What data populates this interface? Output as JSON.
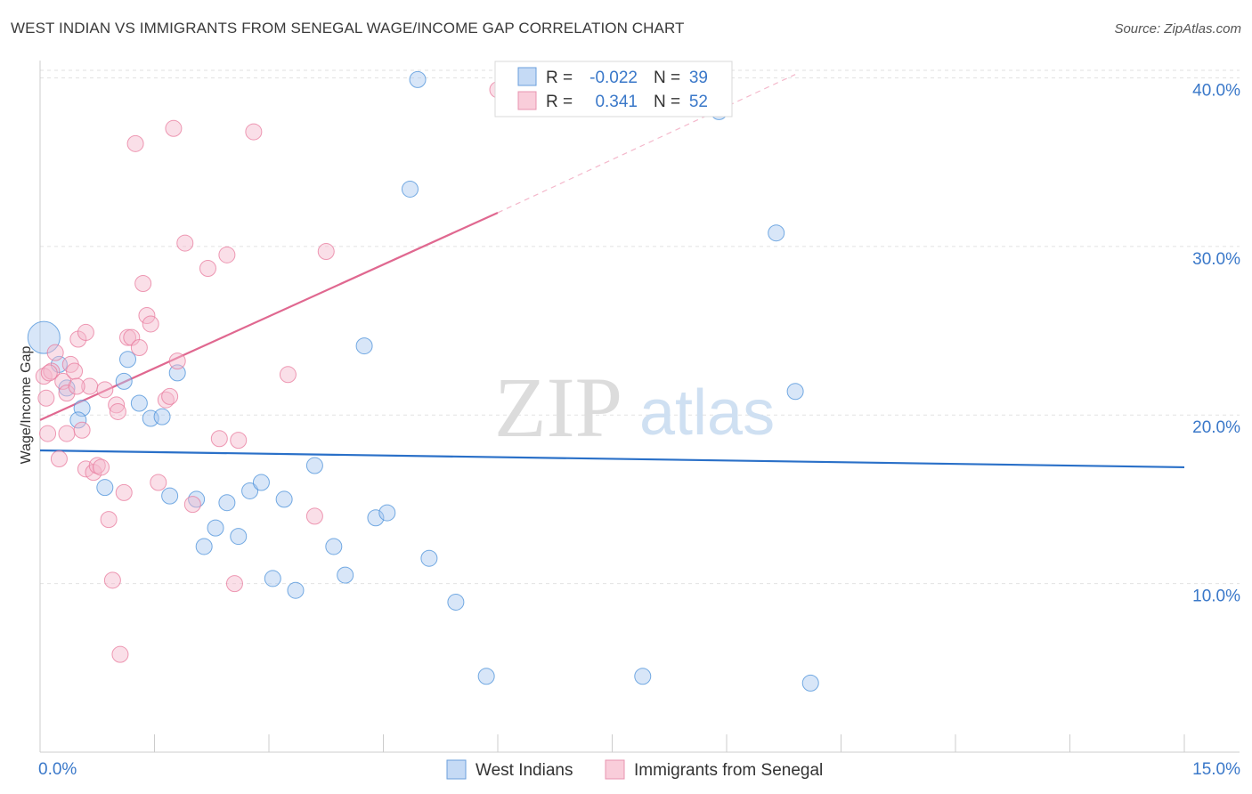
{
  "header": {
    "title": "WEST INDIAN VS IMMIGRANTS FROM SENEGAL WAGE/INCOME GAP CORRELATION CHART",
    "source": "Source: ZipAtlas.com"
  },
  "colors": {
    "blue": "#4a90d9",
    "blue_fill": "#a8c8f0",
    "blue_line": "#2a70c8",
    "pink": "#e8799c",
    "pink_fill": "#f4b8cb",
    "pink_line": "#e06890",
    "tick_label": "#3a78c9",
    "grid": "#e2e2e2"
  },
  "legend_top": {
    "rows": [
      {
        "r_label": "R =",
        "r_value": "-0.022",
        "n_label": "N =",
        "n_value": "39"
      },
      {
        "r_label": "R =",
        "r_value": "0.341",
        "n_label": "N =",
        "n_value": "52"
      }
    ]
  },
  "legend_bottom": {
    "items": [
      "West Indians",
      "Immigrants from Senegal"
    ]
  },
  "watermark": {
    "zip": "ZIP",
    "atlas": "atlas"
  },
  "chart_data": {
    "type": "scatter",
    "title": "WEST INDIAN VS IMMIGRANTS FROM SENEGAL WAGE/INCOME GAP CORRELATION CHART",
    "xlabel": "",
    "ylabel": "Wage/Income Gap",
    "xlim": [
      0,
      15
    ],
    "ylim": [
      0,
      40.5
    ],
    "x_tick_labels": [
      {
        "value": 0,
        "label": "0.0%"
      },
      {
        "value": 15,
        "label": "15.0%"
      }
    ],
    "y_tick_labels": [
      {
        "value": 10,
        "label": "10.0%"
      },
      {
        "value": 20,
        "label": "20.0%"
      },
      {
        "value": 30,
        "label": "30.0%"
      },
      {
        "value": 40,
        "label": "40.0%"
      }
    ],
    "series": [
      {
        "name": "West Indians",
        "R": -0.022,
        "N": 39,
        "trend": {
          "x0": 0,
          "y0": 17.9,
          "x1": 15,
          "y1": 16.9
        },
        "points": [
          [
            0.05,
            24.6,
            "large"
          ],
          [
            0.25,
            23.0
          ],
          [
            0.35,
            21.6
          ],
          [
            0.55,
            20.4
          ],
          [
            0.5,
            19.7
          ],
          [
            0.85,
            15.7
          ],
          [
            1.1,
            22.0
          ],
          [
            1.15,
            23.3
          ],
          [
            1.3,
            20.7
          ],
          [
            1.45,
            19.8
          ],
          [
            1.6,
            19.9
          ],
          [
            1.8,
            22.5
          ],
          [
            1.7,
            15.2
          ],
          [
            2.05,
            15.0
          ],
          [
            2.15,
            12.2
          ],
          [
            2.3,
            13.3
          ],
          [
            2.45,
            14.8
          ],
          [
            2.6,
            12.8
          ],
          [
            2.75,
            15.5
          ],
          [
            2.9,
            16.0
          ],
          [
            3.05,
            10.3
          ],
          [
            3.2,
            15.0
          ],
          [
            3.35,
            9.6
          ],
          [
            3.6,
            17.0
          ],
          [
            3.85,
            12.2
          ],
          [
            4.0,
            10.5
          ],
          [
            4.25,
            24.1
          ],
          [
            4.4,
            13.9
          ],
          [
            4.55,
            14.2
          ],
          [
            4.85,
            33.4
          ],
          [
            4.95,
            39.9
          ],
          [
            5.1,
            11.5
          ],
          [
            5.45,
            8.9
          ],
          [
            5.85,
            4.5
          ],
          [
            7.9,
            4.5
          ],
          [
            8.9,
            38.0
          ],
          [
            9.65,
            30.8
          ],
          [
            9.9,
            21.4
          ],
          [
            10.1,
            4.1
          ]
        ]
      },
      {
        "name": "Immigrants from Senegal",
        "R": 0.341,
        "N": 52,
        "trend": {
          "x0": 0,
          "y0": 19.7,
          "x1": 6.0,
          "y1": 32.0
        },
        "trend_extension": {
          "x0": 6.0,
          "y0": 32.0,
          "x1": 9.9,
          "y1": 40.2
        },
        "points": [
          [
            0.05,
            22.3
          ],
          [
            0.08,
            21.0
          ],
          [
            0.1,
            18.9
          ],
          [
            0.15,
            22.6
          ],
          [
            0.2,
            23.7
          ],
          [
            0.25,
            17.4
          ],
          [
            0.3,
            22.0
          ],
          [
            0.35,
            18.9
          ],
          [
            0.35,
            21.3
          ],
          [
            0.4,
            23.0
          ],
          [
            0.45,
            22.6
          ],
          [
            0.5,
            24.5
          ],
          [
            0.55,
            19.1
          ],
          [
            0.6,
            24.9
          ],
          [
            0.6,
            16.8
          ],
          [
            0.65,
            21.7
          ],
          [
            0.7,
            16.6
          ],
          [
            0.75,
            17.0
          ],
          [
            0.8,
            16.9
          ],
          [
            0.85,
            21.5
          ],
          [
            0.9,
            13.8
          ],
          [
            0.95,
            10.2
          ],
          [
            1.0,
            20.6
          ],
          [
            1.05,
            5.8
          ],
          [
            1.1,
            15.4
          ],
          [
            1.15,
            24.6
          ],
          [
            1.2,
            24.6
          ],
          [
            1.25,
            36.1
          ],
          [
            1.3,
            24.0
          ],
          [
            1.35,
            27.8
          ],
          [
            1.4,
            25.9
          ],
          [
            1.45,
            25.4
          ],
          [
            1.55,
            16.0
          ],
          [
            1.65,
            20.9
          ],
          [
            1.7,
            21.1
          ],
          [
            1.75,
            37.0
          ],
          [
            1.8,
            23.2
          ],
          [
            1.9,
            30.2
          ],
          [
            2.0,
            14.7
          ],
          [
            2.2,
            28.7
          ],
          [
            2.35,
            18.6
          ],
          [
            2.45,
            29.5
          ],
          [
            2.55,
            10.0
          ],
          [
            2.6,
            18.5
          ],
          [
            2.8,
            36.8
          ],
          [
            3.25,
            22.4
          ],
          [
            3.6,
            14.0
          ],
          [
            3.75,
            29.7
          ],
          [
            6.0,
            39.3
          ],
          [
            0.12,
            22.5
          ],
          [
            0.48,
            21.7
          ],
          [
            1.02,
            20.2
          ]
        ]
      }
    ]
  }
}
